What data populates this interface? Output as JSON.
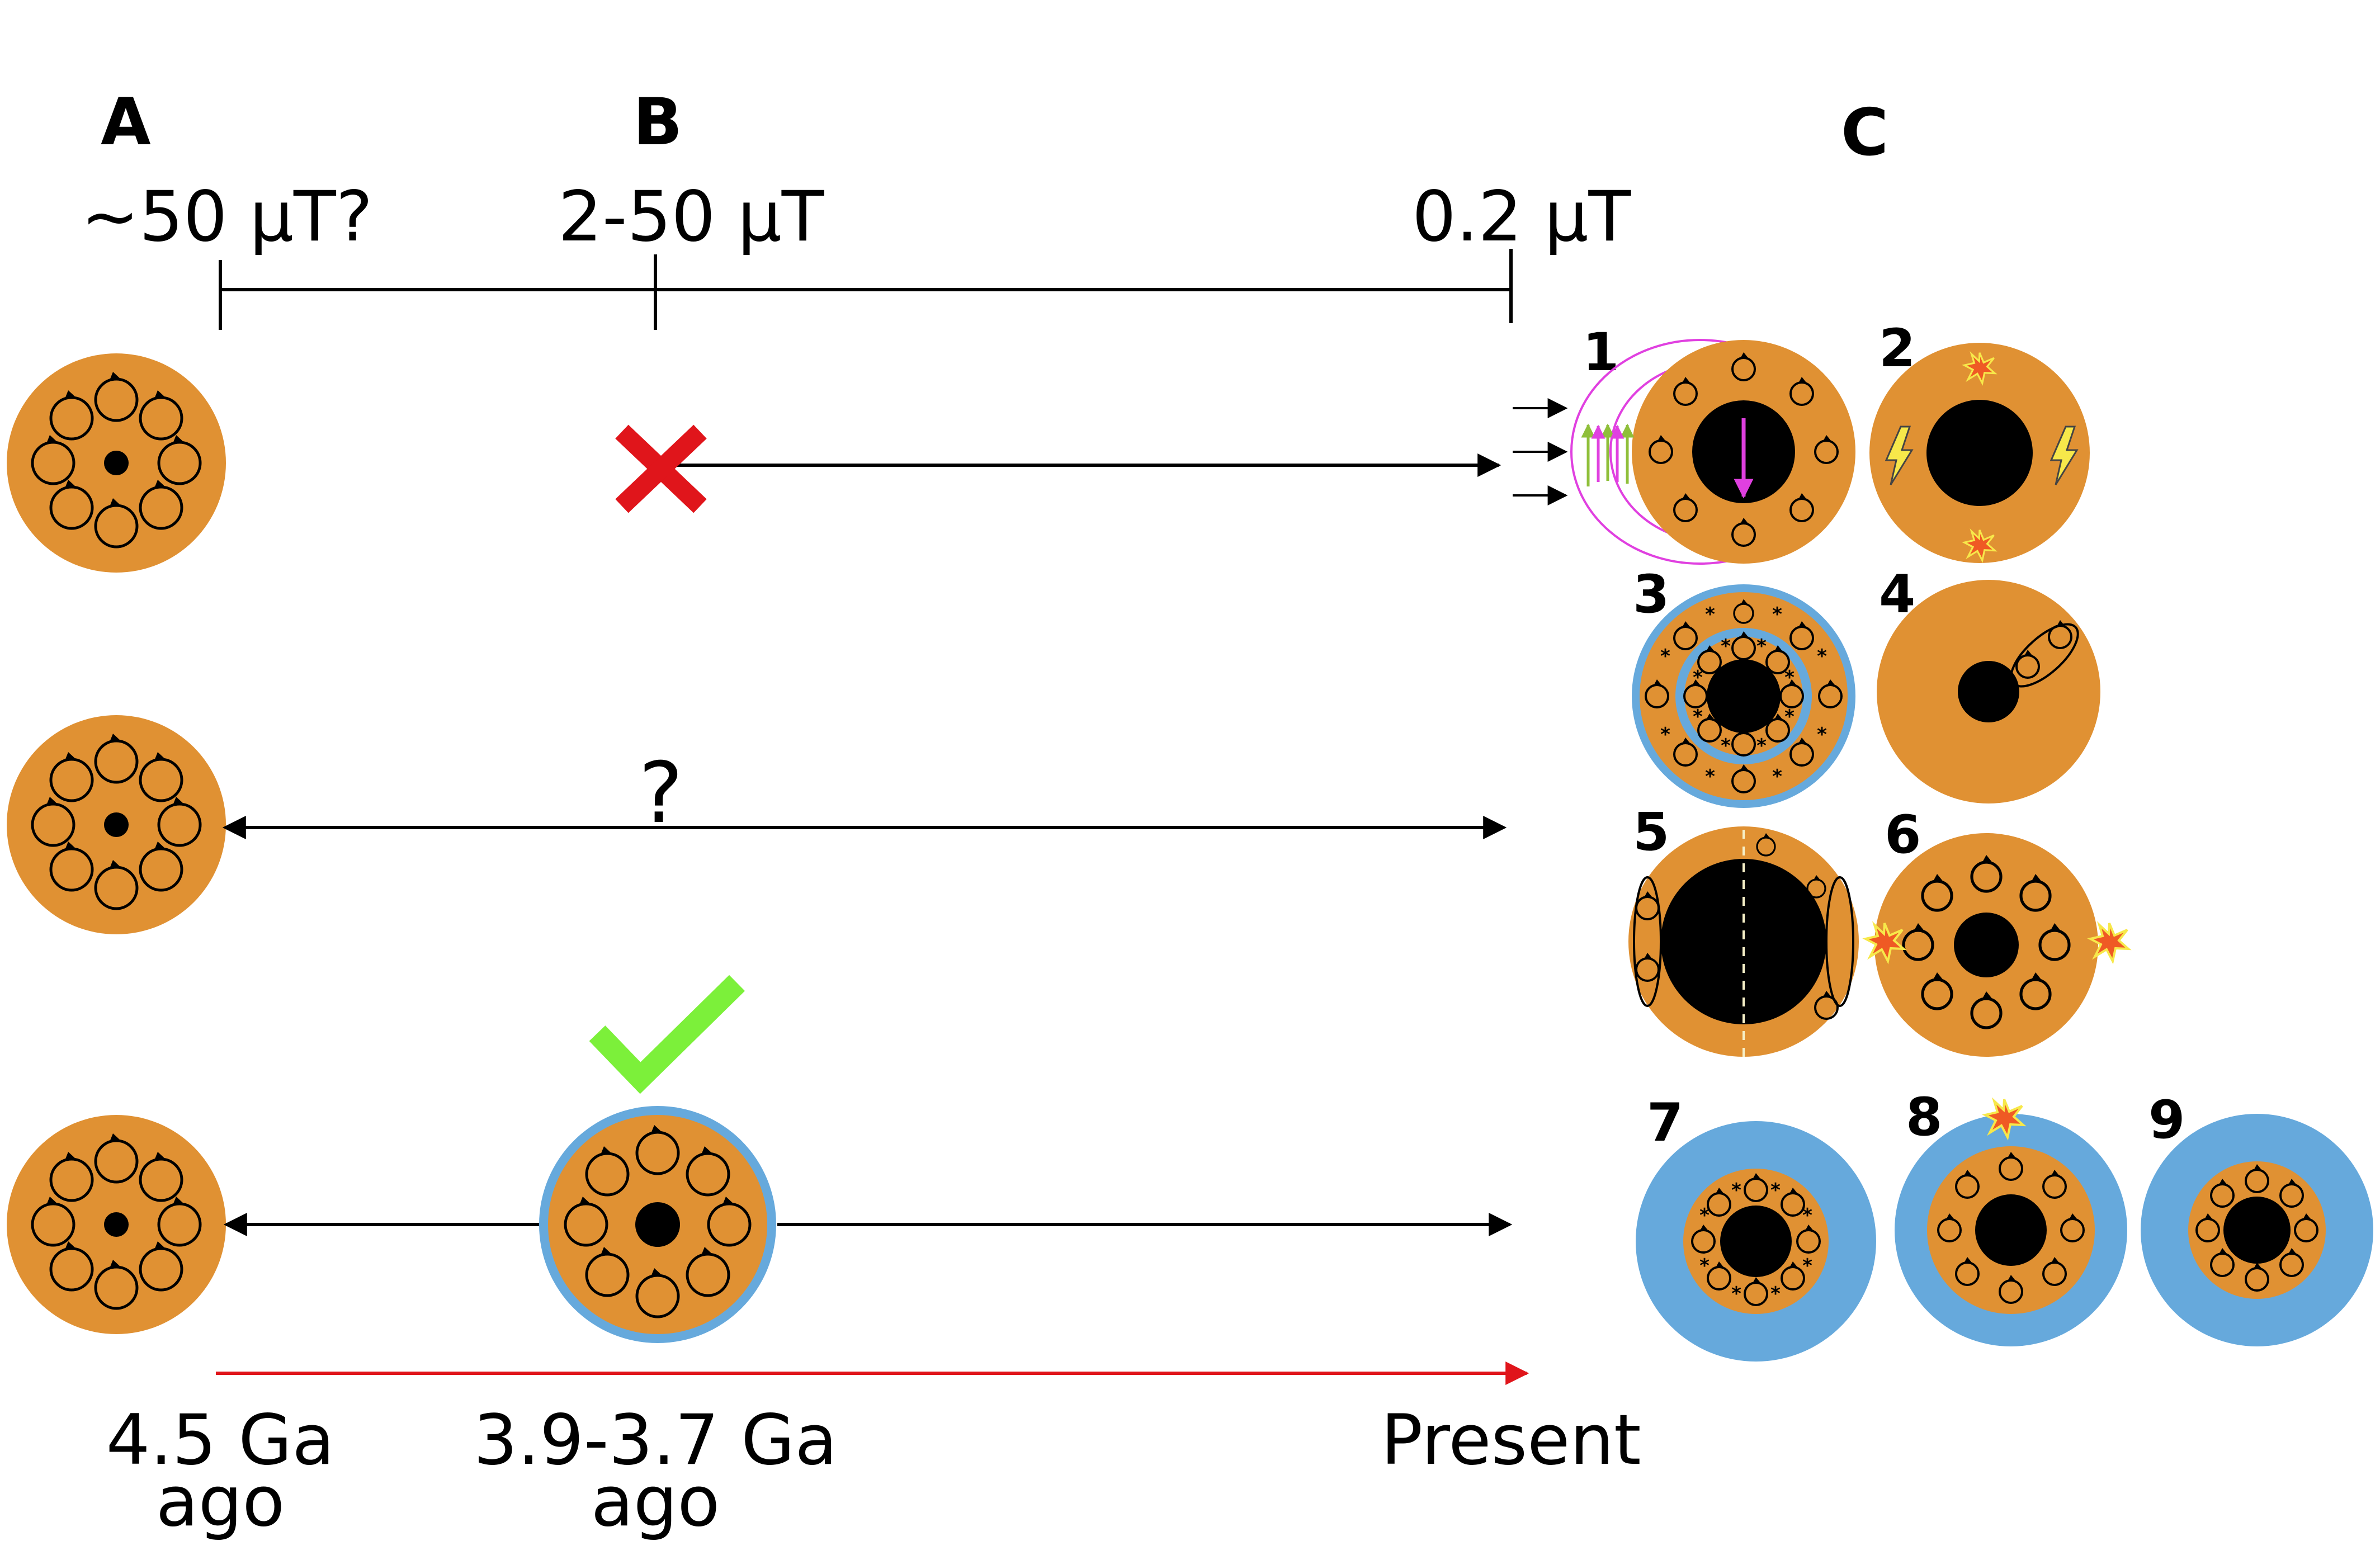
{
  "panels": {
    "A": "A",
    "B": "B",
    "C": "C"
  },
  "field_strengths": {
    "A": "~50 µT?",
    "B": "2-50 µT",
    "present": "0.2 µT"
  },
  "time_labels": {
    "A_line1": "4.5 Ga",
    "A_line2": "ago",
    "B_line1": "3.9-3.7 Ga",
    "B_line2": "ago",
    "present": "Present"
  },
  "question_mark": "?",
  "scenario_numbers": [
    "1",
    "2",
    "3",
    "4",
    "5",
    "6",
    "7",
    "8",
    "9"
  ],
  "colors": {
    "mantle": "#e09133",
    "core": "#000000",
    "ocean": "#66a9dc",
    "field_line": "#e040e0",
    "arrow_green": "#8fbf3a",
    "cross": "#e0151b",
    "check": "#7cf03a",
    "time_arrow": "#e0151b",
    "bolt": "#f7e84a",
    "impact": "#ef5a24"
  },
  "icons": [
    "cross-icon",
    "check-icon",
    "lightning-icon",
    "impact-icon",
    "convection-cell-icon"
  ]
}
